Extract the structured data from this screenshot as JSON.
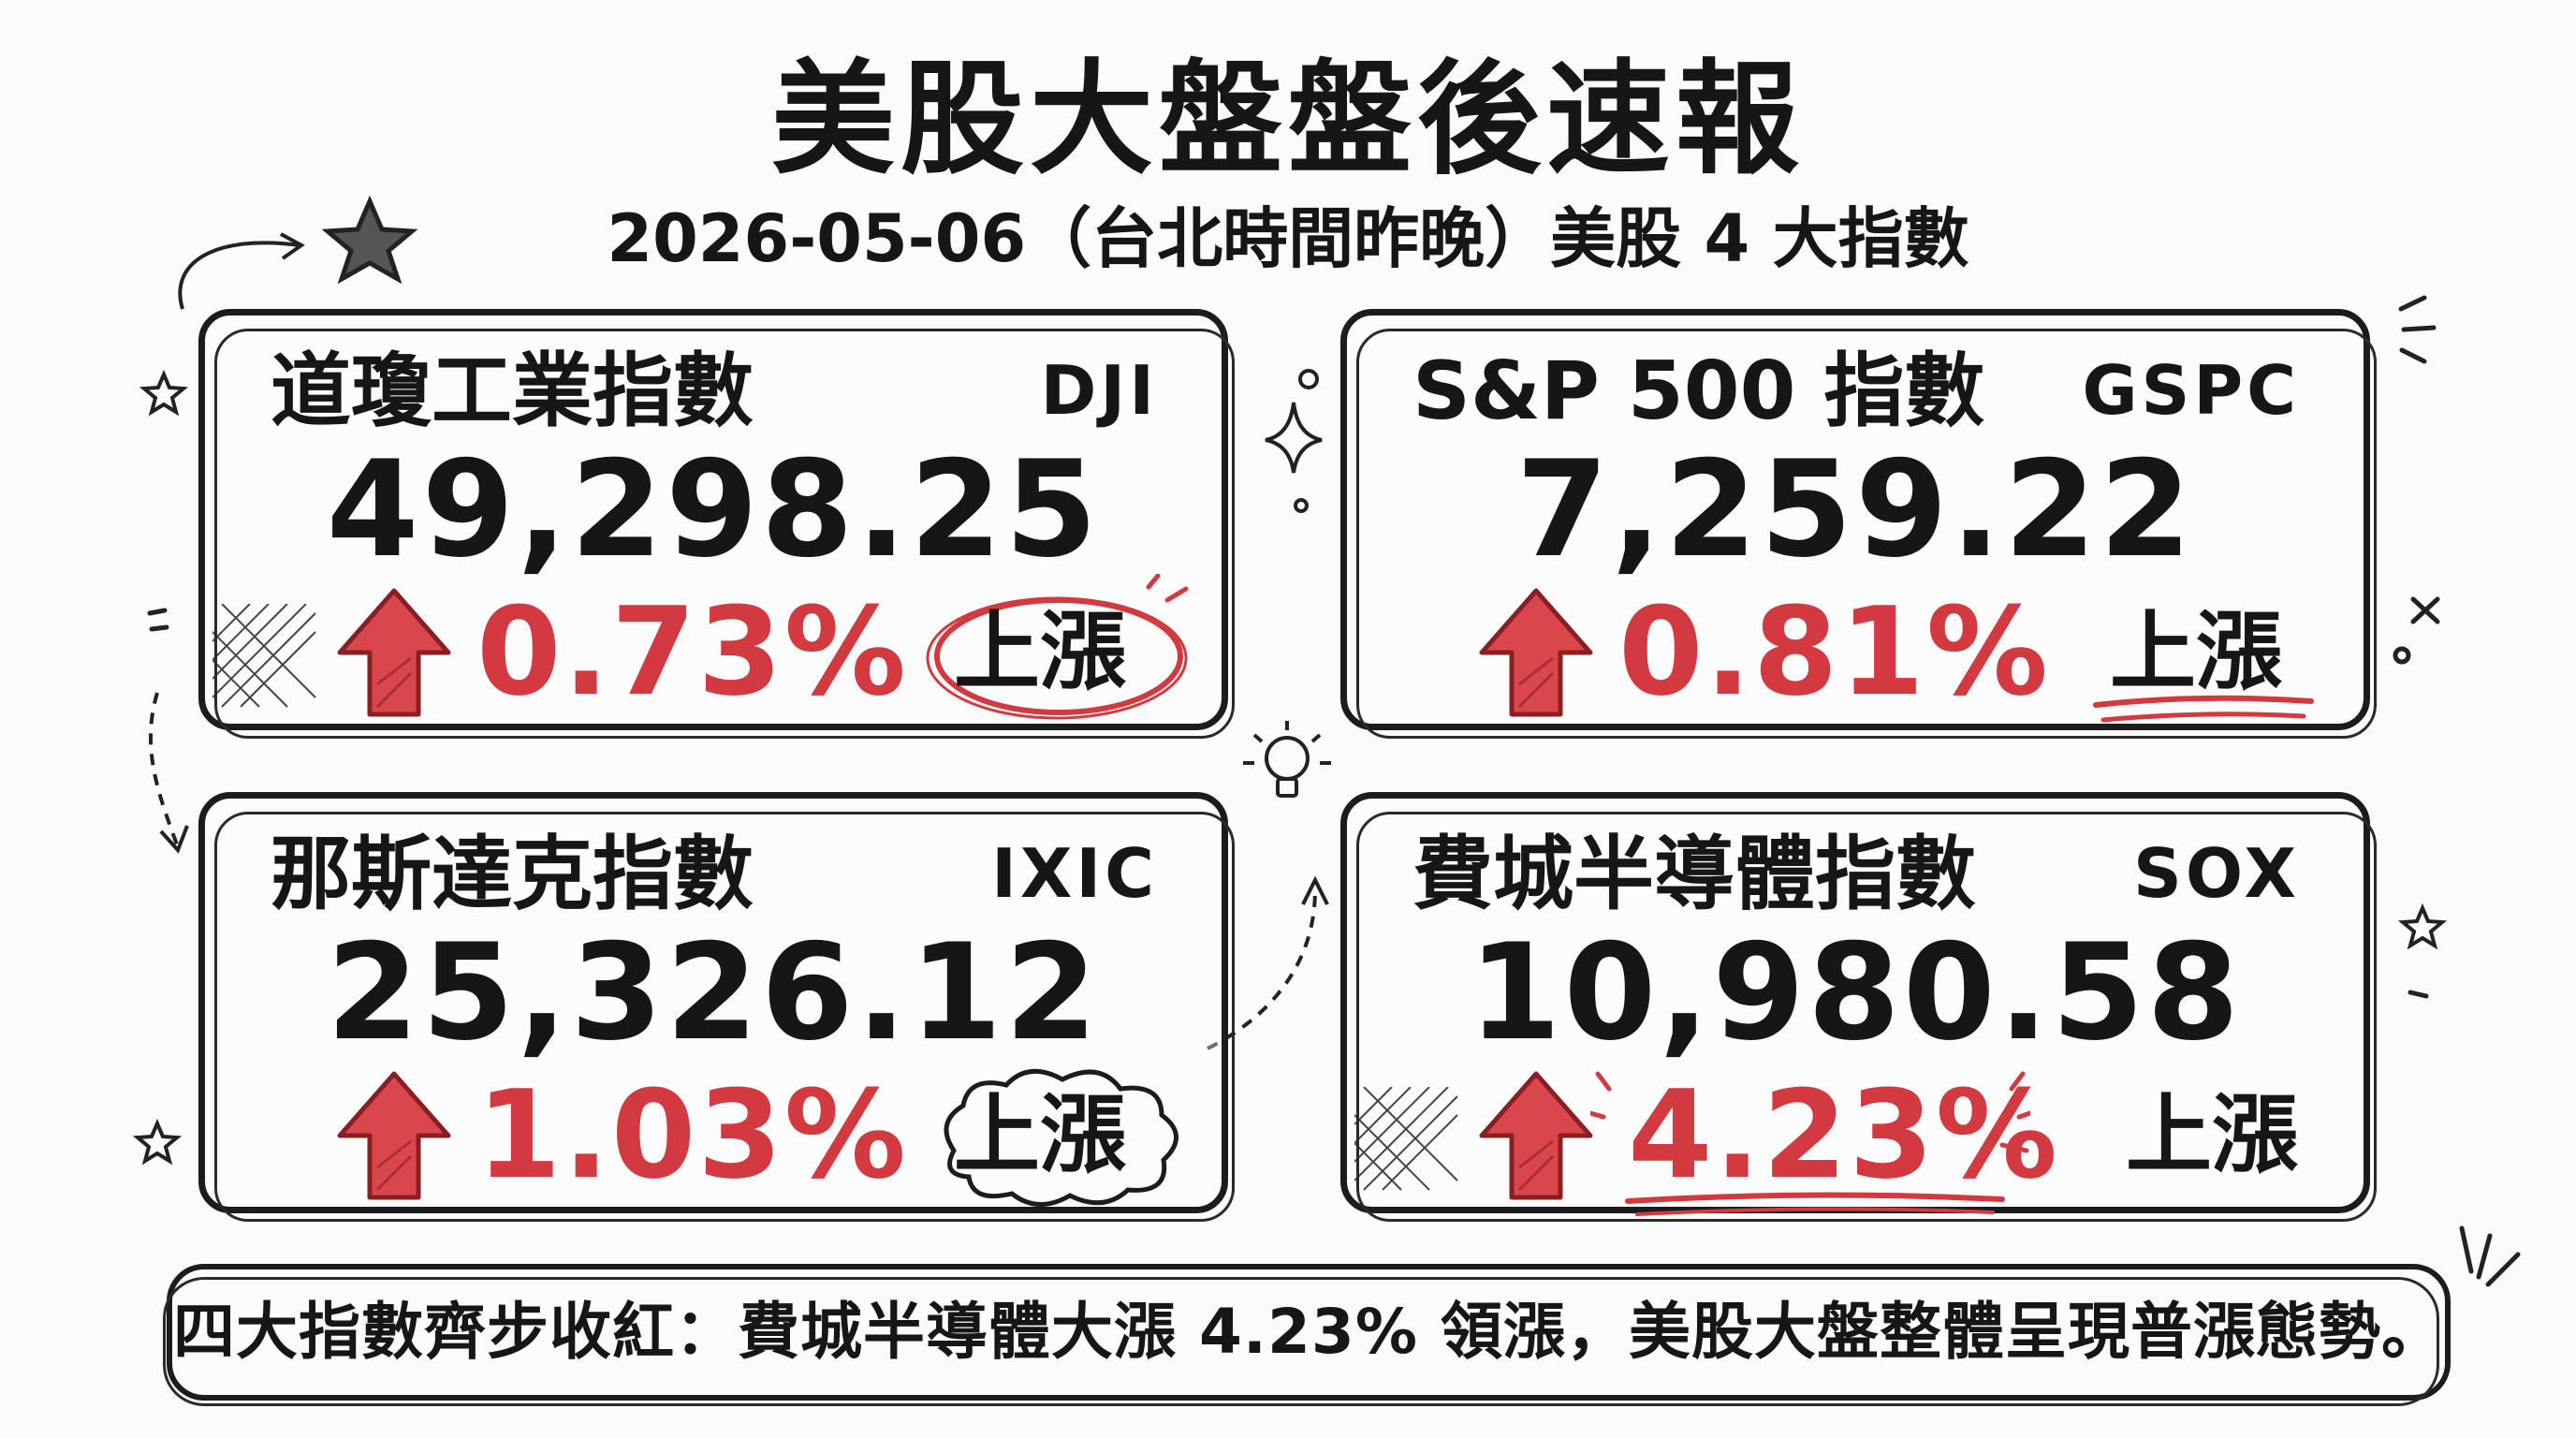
{
  "header": {
    "title": "美股大盤盤後速報",
    "subtitle": "2026-05-06（台北時間昨晚）美股 4 大指數"
  },
  "colors": {
    "up": "#d23a3f",
    "ink": "#161616"
  },
  "indices": [
    {
      "name": "道瓊工業指數",
      "code": "DJI",
      "value": "49,298.25",
      "change_pct": "0.73%",
      "trend": "上漲",
      "trend_mark": "circle",
      "icon": "up-arrow-icon"
    },
    {
      "name": "S&P 500 指數",
      "code": "GSPC",
      "value": "7,259.22",
      "change_pct": "0.81%",
      "trend": "上漲",
      "trend_mark": "underline",
      "icon": "up-arrow-icon"
    },
    {
      "name": "那斯達克指數",
      "code": "IXIC",
      "value": "25,326.12",
      "change_pct": "1.03%",
      "trend": "上漲",
      "trend_mark": "cloud",
      "icon": "up-arrow-icon"
    },
    {
      "name": "費城半導體指數",
      "code": "SOX",
      "value": "10,980.58",
      "change_pct": "4.23%",
      "trend": "上漲",
      "trend_mark": "burst-underline",
      "icon": "up-arrow-icon"
    }
  ],
  "summary": {
    "text": "四大指數齊步收紅：費城半導體大漲 4.23% 領漲，美股大盤整體呈現普漲態勢。"
  }
}
